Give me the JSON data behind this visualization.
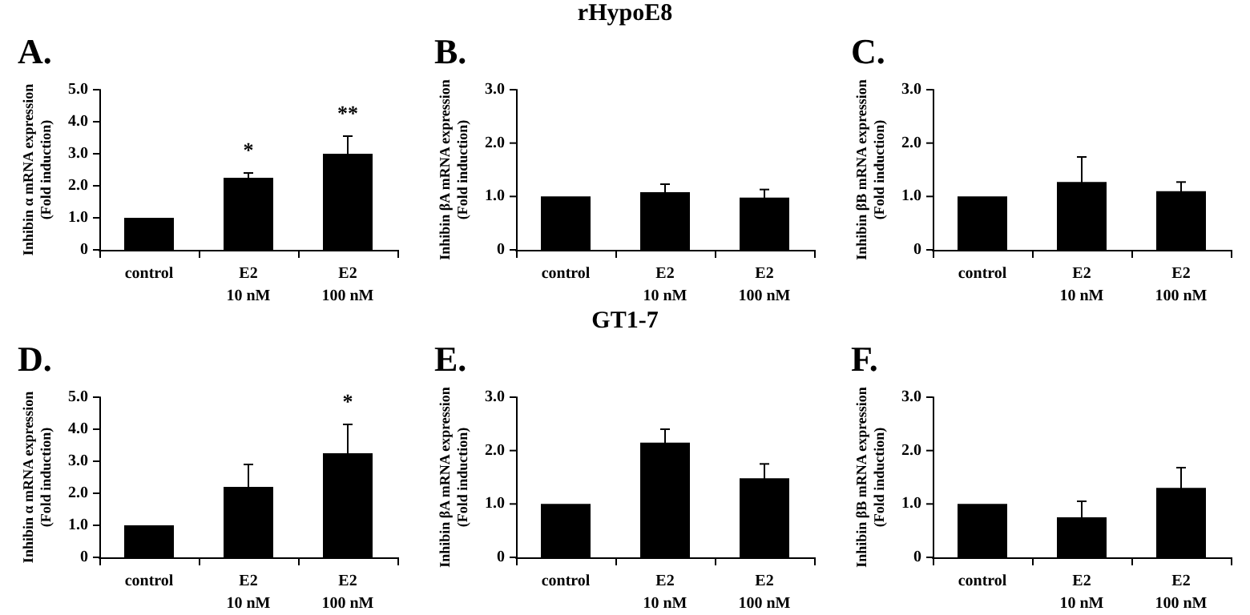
{
  "chart_data": [
    {
      "type": "bar",
      "title": "A.",
      "ylabel": "Inhibin α mRNA expression\n(Fold induction)",
      "categories": [
        "control",
        "E2\n10 nM",
        "E2\n100 nM"
      ],
      "values": [
        1.0,
        2.25,
        3.0
      ],
      "errors": [
        null,
        0.15,
        0.55
      ],
      "color": "#000000",
      "ylim": [
        0,
        5
      ],
      "yticks": [
        {
          "value": 0,
          "label": "0"
        },
        {
          "value": 1,
          "label": "1.0"
        },
        {
          "value": 2,
          "label": "2.0"
        },
        {
          "value": 3,
          "label": "3.0"
        },
        {
          "value": 4,
          "label": "4.0"
        },
        {
          "value": 5,
          "label": "5.0"
        }
      ],
      "annotations": [
        {
          "text": "*",
          "x": "E2\n10 nM",
          "y": 2.4
        },
        {
          "text": "**",
          "x": "E2\n100 nM",
          "y": 3.55
        }
      ]
    },
    {
      "type": "bar",
      "title": "B.",
      "ylabel": "Inhibin βA mRNA expression\n(Fold induction)",
      "categories": [
        "control",
        "E2\n10 nM",
        "E2\n100 nM"
      ],
      "values": [
        1.0,
        1.08,
        0.98
      ],
      "errors": [
        null,
        0.15,
        0.15
      ],
      "color": "#000000",
      "ylim": [
        0,
        3
      ],
      "yticks": [
        {
          "value": 0,
          "label": "0"
        },
        {
          "value": 1,
          "label": "1.0"
        },
        {
          "value": 2,
          "label": "2.0"
        },
        {
          "value": 3,
          "label": "3.0"
        }
      ],
      "annotations": [
        "rHypoE8"
      ]
    },
    {
      "type": "bar",
      "title": "C.",
      "ylabel": "Inhibin βB mRNA expression\n(Fold induction)",
      "categories": [
        "control",
        "E2\n10 nM",
        "E2\n100 nM"
      ],
      "values": [
        1.0,
        1.27,
        1.1
      ],
      "errors": [
        null,
        0.47,
        0.17
      ],
      "color": "#000000",
      "ylim": [
        0,
        3
      ],
      "yticks": [
        {
          "value": 0,
          "label": "0"
        },
        {
          "value": 1,
          "label": "1.0"
        },
        {
          "value": 2,
          "label": "2.0"
        },
        {
          "value": 3,
          "label": "3.0"
        }
      ]
    },
    {
      "type": "bar",
      "title": "D.",
      "ylabel": "Inhibin α mRNA expression\n(Fold induction)",
      "categories": [
        "control",
        "E2\n10 nM",
        "E2\n100 nM"
      ],
      "values": [
        1.0,
        2.2,
        3.25
      ],
      "errors": [
        null,
        0.7,
        0.9
      ],
      "color": "#000000",
      "ylim": [
        0,
        5
      ],
      "yticks": [
        {
          "value": 0,
          "label": "0"
        },
        {
          "value": 1,
          "label": "1.0"
        },
        {
          "value": 2,
          "label": "2.0"
        },
        {
          "value": 3,
          "label": "3.0"
        },
        {
          "value": 4,
          "label": "4.0"
        },
        {
          "value": 5,
          "label": "5.0"
        }
      ],
      "annotations": [
        {
          "text": "*",
          "x": "E2\n100 nM",
          "y": 4.15
        }
      ]
    },
    {
      "type": "bar",
      "title": "E.",
      "ylabel": "Inhibin βA mRNA expression\n(Fold induction)",
      "categories": [
        "control",
        "E2\n10 nM",
        "E2\n100 nM"
      ],
      "values": [
        1.0,
        2.15,
        1.48
      ],
      "errors": [
        null,
        0.25,
        0.27
      ],
      "color": "#000000",
      "ylim": [
        0,
        3
      ],
      "yticks": [
        {
          "value": 0,
          "label": "0"
        },
        {
          "value": 1,
          "label": "1.0"
        },
        {
          "value": 2,
          "label": "2.0"
        },
        {
          "value": 3,
          "label": "3.0"
        }
      ],
      "annotations": [
        "GT1-7"
      ]
    },
    {
      "type": "bar",
      "title": "F.",
      "ylabel": "Inhibin βB mRNA expression\n(Fold induction)",
      "categories": [
        "control",
        "E2\n10 nM",
        "E2\n100 nM"
      ],
      "values": [
        1.0,
        0.75,
        1.3
      ],
      "errors": [
        null,
        0.3,
        0.38
      ],
      "color": "#000000",
      "ylim": [
        0,
        3
      ],
      "yticks": [
        {
          "value": 0,
          "label": "0"
        },
        {
          "value": 1,
          "label": "1.0"
        },
        {
          "value": 2,
          "label": "2.0"
        },
        {
          "value": 3,
          "label": "3.0"
        }
      ]
    }
  ]
}
